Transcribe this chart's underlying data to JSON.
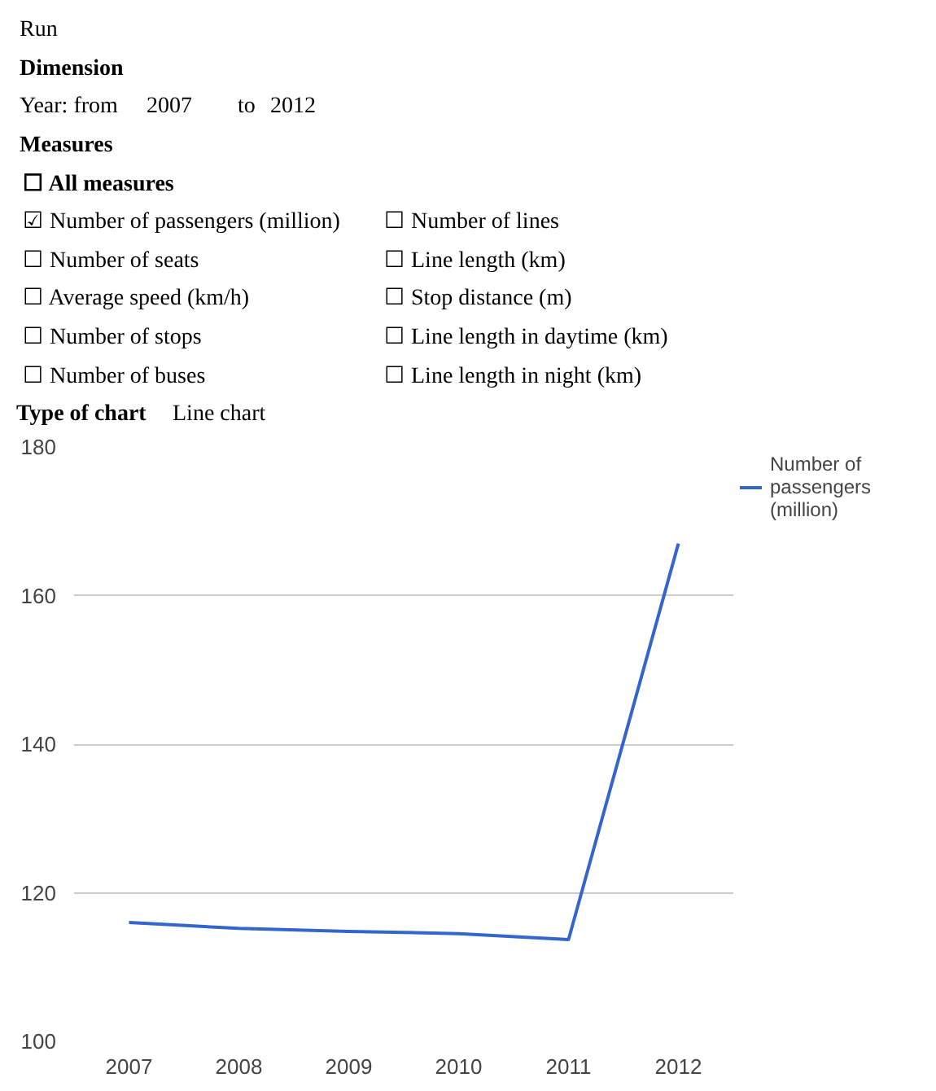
{
  "chart_data": {
    "type": "line",
    "annotations": [
      "Run",
      "Dimension",
      "Year: from",
      "2007",
      "to",
      "2012",
      "Measures",
      "☐ All measures",
      "☑ Number of passengers (million)",
      "☐ Number of lines",
      "☐ Number of seats",
      "☐ Line length (km)",
      "☐ Average speed (km/h)",
      "☐ Stop distance (m)",
      "☐ Number of stops",
      "☐ Line length in daytime (km)",
      "☐ Number of buses",
      "☐ Line length in night (km)",
      "Type of chart",
      "Line chart"
    ],
    "categories": [
      "2007",
      "2008",
      "2009",
      "2010",
      "2011",
      "2012"
    ],
    "series": [
      {
        "name": "Number of passengers (million)",
        "color": "#3366cc",
        "values": [
          116,
          115.2,
          114.8,
          114.5,
          113.7,
          167
        ]
      }
    ],
    "ylim": [
      100,
      180
    ],
    "yticks": [
      100,
      120,
      140,
      160,
      180
    ],
    "grid": "y",
    "legend": "right"
  }
}
